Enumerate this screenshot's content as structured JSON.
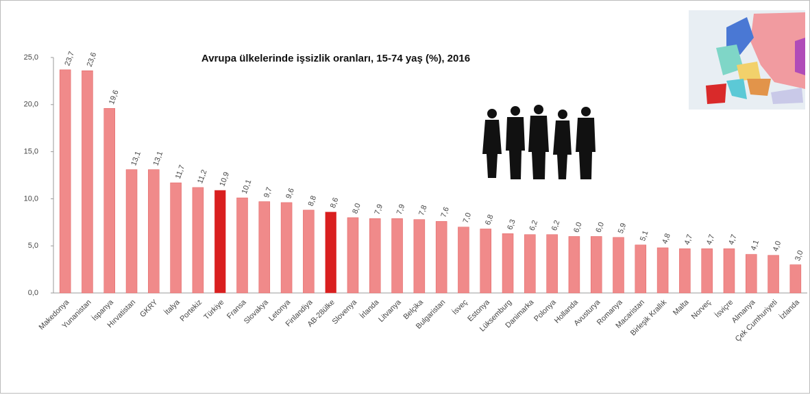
{
  "chart_data": {
    "type": "bar",
    "title": "Avrupa ülkelerinde işsizlik oranları, 15-74 yaş (%), 2016",
    "categories": [
      "Makedonya",
      "Yunanistan",
      "İspanya",
      "Hırvatistan",
      "GKRY",
      "İtalya",
      "Portekiz",
      "Türkiye",
      "Fransa",
      "Slovakya",
      "Letonya",
      "Finlandiya",
      "AB-28ülke",
      "Slovenya",
      "İrlanda",
      "Litvanya",
      "Belçika",
      "Bulgaristan",
      "İsveç",
      "Estonya",
      "Lüksemburg",
      "Danimarka",
      "Polonya",
      "Hollanda",
      "Avusturya",
      "Romanya",
      "Macaristan",
      "Birleşik Krallık",
      "Malta",
      "Norveç",
      "İsviçre",
      "Almanya",
      "Çek Cumhuriyeti",
      "İzlanda"
    ],
    "values": [
      23.7,
      23.6,
      19.6,
      13.1,
      13.1,
      11.7,
      11.2,
      10.9,
      10.1,
      9.7,
      9.6,
      8.8,
      8.6,
      8.0,
      7.9,
      7.9,
      7.8,
      7.6,
      7.0,
      6.8,
      6.3,
      6.2,
      6.2,
      6.0,
      6.0,
      5.9,
      5.1,
      4.8,
      4.7,
      4.7,
      4.7,
      4.1,
      4.0,
      3.0
    ],
    "value_labels": [
      "23,7",
      "23,6",
      "19,6",
      "13,1",
      "13,1",
      "11,7",
      "11,2",
      "10,9",
      "10,1",
      "9,7",
      "9,6",
      "8,8",
      "8,6",
      "8,0",
      "7,9",
      "7,9",
      "7,8",
      "7,6",
      "7,0",
      "6,8",
      "6,3",
      "6,2",
      "6,2",
      "6,0",
      "6,0",
      "5,9",
      "5,1",
      "4,8",
      "4,7",
      "4,7",
      "4,7",
      "4,1",
      "4,0",
      "3,0"
    ],
    "colors": [
      "#f08a8a",
      "#f08a8a",
      "#f08a8a",
      "#f08a8a",
      "#f08a8a",
      "#f08a8a",
      "#f08a8a",
      "#d91f1f",
      "#f08a8a",
      "#f08a8a",
      "#f08a8a",
      "#f08a8a",
      "#d91f1f",
      "#f08a8a",
      "#f08a8a",
      "#f08a8a",
      "#f08a8a",
      "#f08a8a",
      "#f08a8a",
      "#f08a8a",
      "#f08a8a",
      "#f08a8a",
      "#f08a8a",
      "#f08a8a",
      "#f08a8a",
      "#f08a8a",
      "#f08a8a",
      "#f08a8a",
      "#f08a8a",
      "#f08a8a",
      "#f08a8a",
      "#f08a8a",
      "#f08a8a",
      "#f08a8a"
    ],
    "ylim": [
      0,
      25
    ],
    "yticks": [
      {
        "value": 0,
        "label": "0,0"
      },
      {
        "value": 5,
        "label": "5,0"
      },
      {
        "value": 10,
        "label": "10,0"
      },
      {
        "value": 15,
        "label": "15,0"
      },
      {
        "value": 20,
        "label": "20,0"
      },
      {
        "value": 25,
        "label": "25,0"
      }
    ],
    "grid": false
  }
}
